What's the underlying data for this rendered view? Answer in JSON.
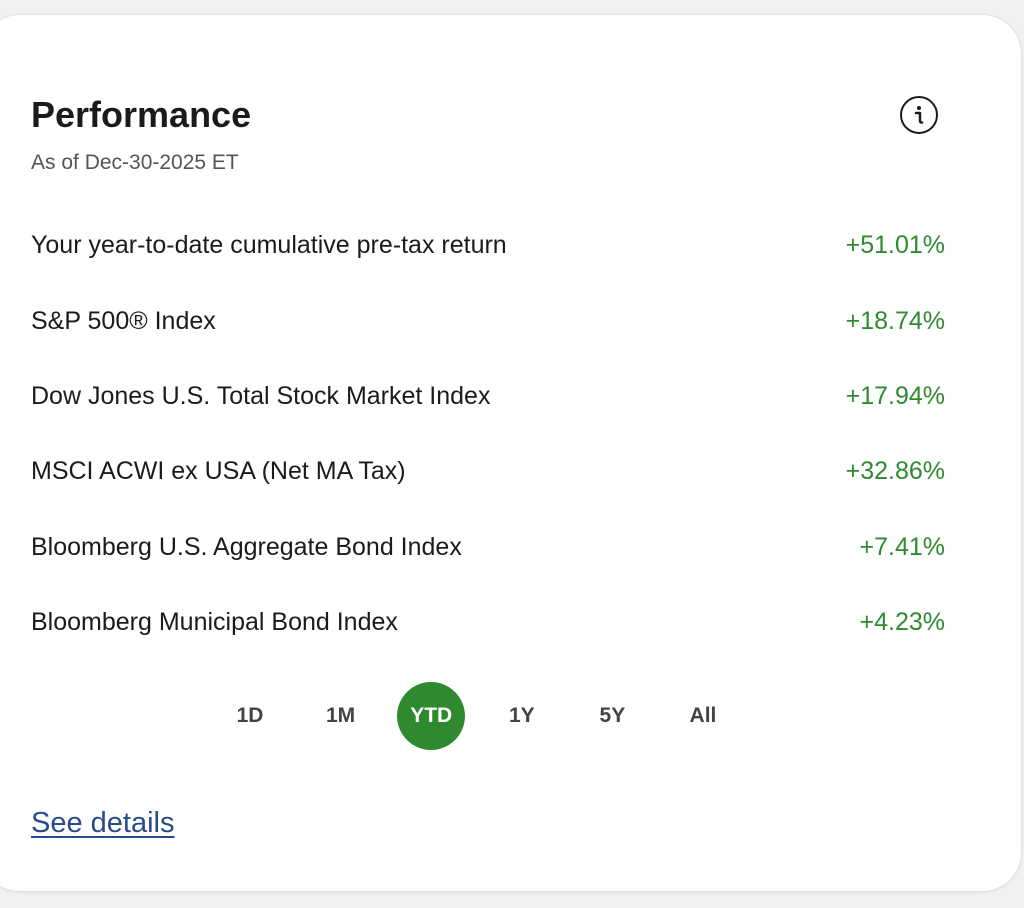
{
  "card": {
    "title": "Performance",
    "as_of": "As of Dec-30-2025 ET",
    "info_icon": "info-icon"
  },
  "returns": [
    {
      "label": "Your year-to-date cumulative pre-tax return",
      "value": "+51.01%"
    },
    {
      "label": "S&P 500® Index",
      "value": "+18.74%"
    },
    {
      "label": "Dow Jones U.S. Total Stock Market Index",
      "value": "+17.94%"
    },
    {
      "label": "MSCI ACWI ex USA (Net MA Tax)",
      "value": "+32.86%"
    },
    {
      "label": "Bloomberg U.S. Aggregate Bond Index",
      "value": "+7.41%"
    },
    {
      "label": "Bloomberg Municipal Bond Index",
      "value": "+4.23%"
    }
  ],
  "periods": [
    {
      "label": "1D",
      "active": false
    },
    {
      "label": "1M",
      "active": false
    },
    {
      "label": "YTD",
      "active": true
    },
    {
      "label": "1Y",
      "active": false
    },
    {
      "label": "5Y",
      "active": false
    },
    {
      "label": "All",
      "active": false
    }
  ],
  "footer": {
    "see_details": "See details"
  },
  "colors": {
    "positive": "#2f8a2f",
    "active_period_bg": "#2f8a2f",
    "link": "#2a4a8a",
    "text": "#1b1b1b"
  }
}
